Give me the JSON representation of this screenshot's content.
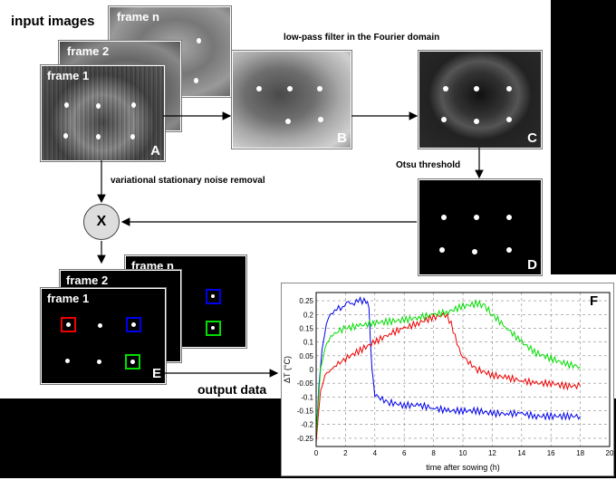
{
  "labels": {
    "input_images": "input images",
    "lowpass": "low-pass filter in the Fourier domain",
    "otsu": "Otsu threshold",
    "variational": "variational stationary noise removal",
    "multiply": "X",
    "output_data": "output data"
  },
  "frames": {
    "frame1": "frame 1",
    "frame2": "frame 2",
    "framen": "frame n"
  },
  "panels": {
    "A": "A",
    "B": "B",
    "C": "C",
    "D": "D",
    "E": "E",
    "F": "F"
  },
  "colors": {
    "blue": "#0000ee",
    "red": "#ee0000",
    "green": "#00dd00"
  },
  "chart_data": {
    "type": "line",
    "xlabel": "time after sowing (h)",
    "ylabel": "ΔT (°C)",
    "xlim": [
      0,
      20
    ],
    "ylim": [
      -0.28,
      0.28
    ],
    "xticks": [
      "0",
      "2",
      "4",
      "6",
      "8",
      "10",
      "12",
      "14",
      "16",
      "18",
      "20"
    ],
    "yticks": [
      "0.25",
      "0.2",
      "0.15",
      "0.1",
      "0.05",
      "0",
      "-0.05",
      "-0.1",
      "-0.15",
      "-0.2",
      "-0.25"
    ],
    "grid": true,
    "series": [
      {
        "color": "blue",
        "x": [
          0,
          0.2,
          0.4,
          0.7,
          1.0,
          1.4,
          1.8,
          2.2,
          2.6,
          3.0,
          3.4,
          3.6,
          3.8,
          4.0,
          4.5,
          5,
          6,
          7,
          8,
          9,
          10,
          11,
          12,
          13,
          14,
          15,
          16,
          17,
          18
        ],
        "y": [
          -0.25,
          -0.05,
          0.07,
          0.17,
          0.2,
          0.22,
          0.23,
          0.24,
          0.245,
          0.25,
          0.25,
          0.22,
          0.0,
          -0.09,
          -0.11,
          -0.12,
          -0.13,
          -0.13,
          -0.14,
          -0.15,
          -0.15,
          -0.15,
          -0.16,
          -0.16,
          -0.16,
          -0.17,
          -0.17,
          -0.17,
          -0.17
        ]
      },
      {
        "color": "red",
        "x": [
          0,
          0.3,
          0.6,
          1.0,
          1.5,
          2,
          3,
          4,
          5,
          6,
          7,
          8,
          8.8,
          9.2,
          9.6,
          10,
          10.5,
          11,
          12,
          13,
          14,
          15,
          16,
          17,
          18
        ],
        "y": [
          -0.26,
          -0.08,
          -0.02,
          0.0,
          0.02,
          0.04,
          0.07,
          0.1,
          0.13,
          0.15,
          0.17,
          0.19,
          0.2,
          0.17,
          0.09,
          0.05,
          0.02,
          0.0,
          -0.02,
          -0.03,
          -0.04,
          -0.05,
          -0.05,
          -0.06,
          -0.06
        ]
      },
      {
        "color": "green",
        "x": [
          0,
          0.3,
          0.6,
          1.0,
          1.5,
          2,
          3,
          4,
          5,
          6,
          7,
          8,
          9,
          10,
          11,
          11.5,
          12,
          13,
          14,
          15,
          16,
          17,
          18
        ],
        "y": [
          -0.24,
          0.0,
          0.08,
          0.12,
          0.14,
          0.15,
          0.16,
          0.17,
          0.175,
          0.18,
          0.19,
          0.2,
          0.21,
          0.23,
          0.24,
          0.23,
          0.2,
          0.15,
          0.1,
          0.06,
          0.04,
          0.02,
          0.01
        ]
      }
    ]
  }
}
